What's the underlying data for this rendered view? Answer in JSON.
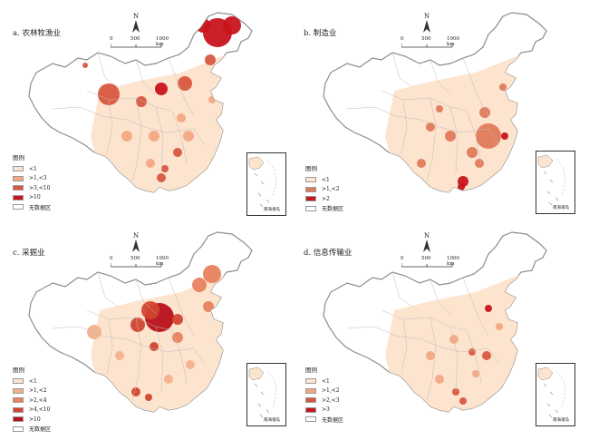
{
  "panels": [
    {
      "id": "a",
      "title": "a. 农林牧渔业",
      "legend_title": "图例",
      "legend": [
        {
          "label": "<1",
          "color": "#fde4cf"
        },
        {
          "label": ">1,<3",
          "color": "#f3a883"
        },
        {
          "label": ">3,<10",
          "color": "#d9573f"
        },
        {
          "label": ">10",
          "color": "#c8141b"
        },
        {
          "label": "无数据区",
          "color": "#ffffff"
        }
      ]
    },
    {
      "id": "b",
      "title": "b. 制造业",
      "legend_title": "图例",
      "legend": [
        {
          "label": "<1",
          "color": "#fde4cf"
        },
        {
          "label": ">1,<2",
          "color": "#e07a5a"
        },
        {
          "label": ">2",
          "color": "#c8141b"
        },
        {
          "label": "无数据区",
          "color": "#ffffff"
        }
      ]
    },
    {
      "id": "c",
      "title": "c. 采掘业",
      "legend_title": "图例",
      "legend": [
        {
          "label": "<1",
          "color": "#fde4cf"
        },
        {
          "label": ">1,<2",
          "color": "#f3b08d"
        },
        {
          "label": ">2,<4",
          "color": "#e8825f"
        },
        {
          "label": ">4,<10",
          "color": "#d2452f"
        },
        {
          "label": ">10",
          "color": "#b8101a"
        },
        {
          "label": "无数据区",
          "color": "#ffffff"
        }
      ]
    },
    {
      "id": "d",
      "title": "d. 信息传输业",
      "legend_title": "图例",
      "legend": [
        {
          "label": "<1",
          "color": "#fde4cf"
        },
        {
          "label": ">1,<2",
          "color": "#f3a883"
        },
        {
          "label": ">2,<3",
          "color": "#d9573f"
        },
        {
          "label": ">3",
          "color": "#c8141b"
        },
        {
          "label": "无数据区",
          "color": "#ffffff"
        }
      ]
    }
  ],
  "north_label": "N",
  "scale_labels": [
    "0",
    "500",
    "1000 km"
  ],
  "inset_label": "南海诸岛",
  "colors": {
    "border": "#8c8c8c",
    "no_data": "#ffffff",
    "base": "#fde4cf"
  }
}
